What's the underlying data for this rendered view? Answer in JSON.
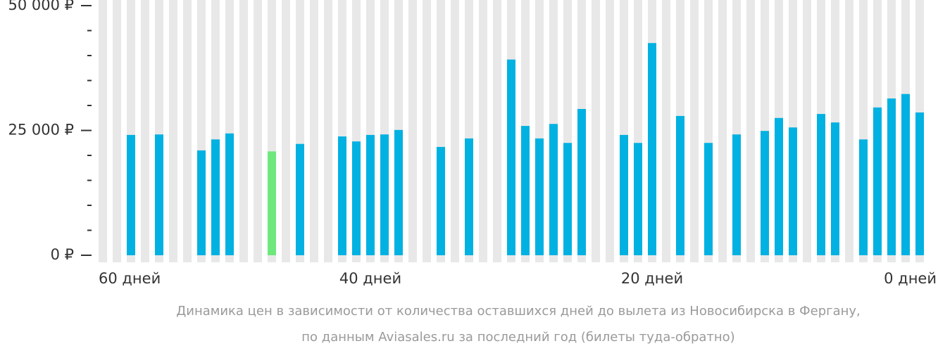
{
  "chart_data": {
    "type": "bar",
    "categories": [
      "60 дней",
      null,
      null,
      null,
      null,
      null,
      null,
      null,
      null,
      null,
      null,
      null,
      null,
      null,
      null,
      null,
      null,
      null,
      null,
      "40 дней",
      null,
      null,
      null,
      null,
      null,
      null,
      null,
      null,
      null,
      null,
      null,
      null,
      null,
      null,
      null,
      null,
      null,
      null,
      null,
      "20 дней",
      null,
      null,
      null,
      null,
      null,
      null,
      null,
      null,
      null,
      null,
      null,
      null,
      null,
      null,
      null,
      null,
      null,
      null,
      "0 дней"
    ],
    "values": [
      null,
      null,
      24100,
      null,
      24200,
      null,
      null,
      21000,
      23200,
      24400,
      null,
      null,
      20800,
      null,
      22300,
      null,
      null,
      23800,
      22800,
      24100,
      24200,
      25100,
      null,
      null,
      21700,
      null,
      23400,
      null,
      null,
      39200,
      25900,
      23400,
      26300,
      22500,
      29300,
      null,
      null,
      24100,
      22500,
      42500,
      null,
      27900,
      null,
      22500,
      null,
      24200,
      null,
      24900,
      27500,
      25600,
      null,
      28300,
      26600,
      null,
      23200,
      29600,
      31400,
      32300,
      28600
    ],
    "color": "#00b1e1",
    "highlight": {
      "index": 12,
      "color": "#6ee87c"
    },
    "background_color": "#e8e8e8",
    "ylim": [
      0,
      50000
    ],
    "yticks": [
      {
        "value": 0,
        "label": "0 ₽"
      },
      {
        "value": 25000,
        "label": "25 000 ₽"
      },
      {
        "value": 50000,
        "label": "50 000 ₽"
      }
    ],
    "minor_yticks": [
      5000,
      10000,
      15000,
      20000,
      30000,
      35000,
      40000,
      45000
    ],
    "caption": [
      "Динамика цен в зависимости от количества оставшихся дней до вылета из Новосибирска в Фергану,",
      "по данным Aviasales.ru за последний год (билеты туда-обратно)"
    ]
  }
}
